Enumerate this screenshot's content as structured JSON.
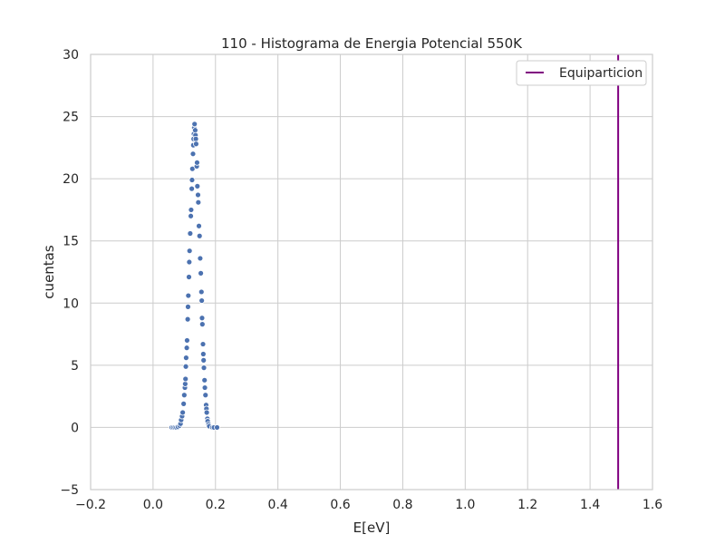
{
  "chart_data": {
    "type": "scatter",
    "title": "110 - Histograma de Energia Potencial 550K",
    "xlabel": "E[eV]",
    "ylabel": "cuentas",
    "xlim": [
      -0.2,
      1.6
    ],
    "ylim": [
      -5,
      30
    ],
    "x_ticks": [
      "−0.2",
      "0.0",
      "0.2",
      "0.4",
      "0.6",
      "0.8",
      "1.0",
      "1.2",
      "1.4",
      "1.6"
    ],
    "y_ticks": [
      "−5",
      "0",
      "5",
      "10",
      "15",
      "20",
      "25",
      "30"
    ],
    "x_tick_values": [
      -0.2,
      0.0,
      0.2,
      0.4,
      0.6,
      0.8,
      1.0,
      1.2,
      1.4,
      1.6
    ],
    "y_tick_values": [
      -5,
      0,
      5,
      10,
      15,
      20,
      25,
      30
    ],
    "grid": true,
    "legend_position": "top-right",
    "series": [
      {
        "type": "scatter",
        "color": "#4c72b0",
        "points": [
          [
            0.06,
            0.0
          ],
          [
            0.065,
            0.0
          ],
          [
            0.07,
            0.0
          ],
          [
            0.075,
            0.0
          ],
          [
            0.08,
            0.05
          ],
          [
            0.085,
            0.15
          ],
          [
            0.088,
            0.3
          ],
          [
            0.09,
            0.6
          ],
          [
            0.093,
            0.9
          ],
          [
            0.095,
            1.2
          ],
          [
            0.098,
            1.9
          ],
          [
            0.1,
            2.6
          ],
          [
            0.102,
            3.2
          ],
          [
            0.103,
            3.5
          ],
          [
            0.104,
            3.9
          ],
          [
            0.105,
            4.9
          ],
          [
            0.106,
            5.6
          ],
          [
            0.108,
            6.4
          ],
          [
            0.109,
            7.0
          ],
          [
            0.111,
            8.7
          ],
          [
            0.112,
            9.7
          ],
          [
            0.113,
            10.6
          ],
          [
            0.115,
            12.1
          ],
          [
            0.116,
            13.3
          ],
          [
            0.117,
            14.2
          ],
          [
            0.119,
            15.6
          ],
          [
            0.121,
            17.0
          ],
          [
            0.122,
            17.5
          ],
          [
            0.124,
            19.2
          ],
          [
            0.125,
            19.9
          ],
          [
            0.126,
            20.8
          ],
          [
            0.128,
            22.0
          ],
          [
            0.129,
            22.7
          ],
          [
            0.13,
            23.2
          ],
          [
            0.131,
            23.6
          ],
          [
            0.132,
            24.1
          ],
          [
            0.133,
            24.4
          ],
          [
            0.135,
            23.9
          ],
          [
            0.136,
            23.5
          ],
          [
            0.137,
            23.2
          ],
          [
            0.138,
            22.8
          ],
          [
            0.14,
            21.0
          ],
          [
            0.141,
            21.3
          ],
          [
            0.142,
            19.4
          ],
          [
            0.144,
            18.7
          ],
          [
            0.145,
            18.1
          ],
          [
            0.147,
            16.2
          ],
          [
            0.149,
            15.4
          ],
          [
            0.151,
            13.6
          ],
          [
            0.153,
            12.4
          ],
          [
            0.155,
            10.9
          ],
          [
            0.156,
            10.2
          ],
          [
            0.157,
            8.8
          ],
          [
            0.158,
            8.3
          ],
          [
            0.16,
            6.7
          ],
          [
            0.161,
            5.9
          ],
          [
            0.162,
            5.4
          ],
          [
            0.163,
            4.8
          ],
          [
            0.165,
            3.8
          ],
          [
            0.166,
            3.2
          ],
          [
            0.168,
            2.6
          ],
          [
            0.17,
            1.8
          ],
          [
            0.171,
            1.5
          ],
          [
            0.172,
            1.2
          ],
          [
            0.174,
            0.7
          ],
          [
            0.175,
            0.5
          ],
          [
            0.178,
            0.25
          ],
          [
            0.18,
            0.1
          ],
          [
            0.19,
            0.0
          ],
          [
            0.195,
            0.0
          ],
          [
            0.205,
            0.0
          ]
        ]
      },
      {
        "type": "vline",
        "name": "Equiparticion",
        "x": 1.49,
        "color": "#800080"
      }
    ]
  }
}
